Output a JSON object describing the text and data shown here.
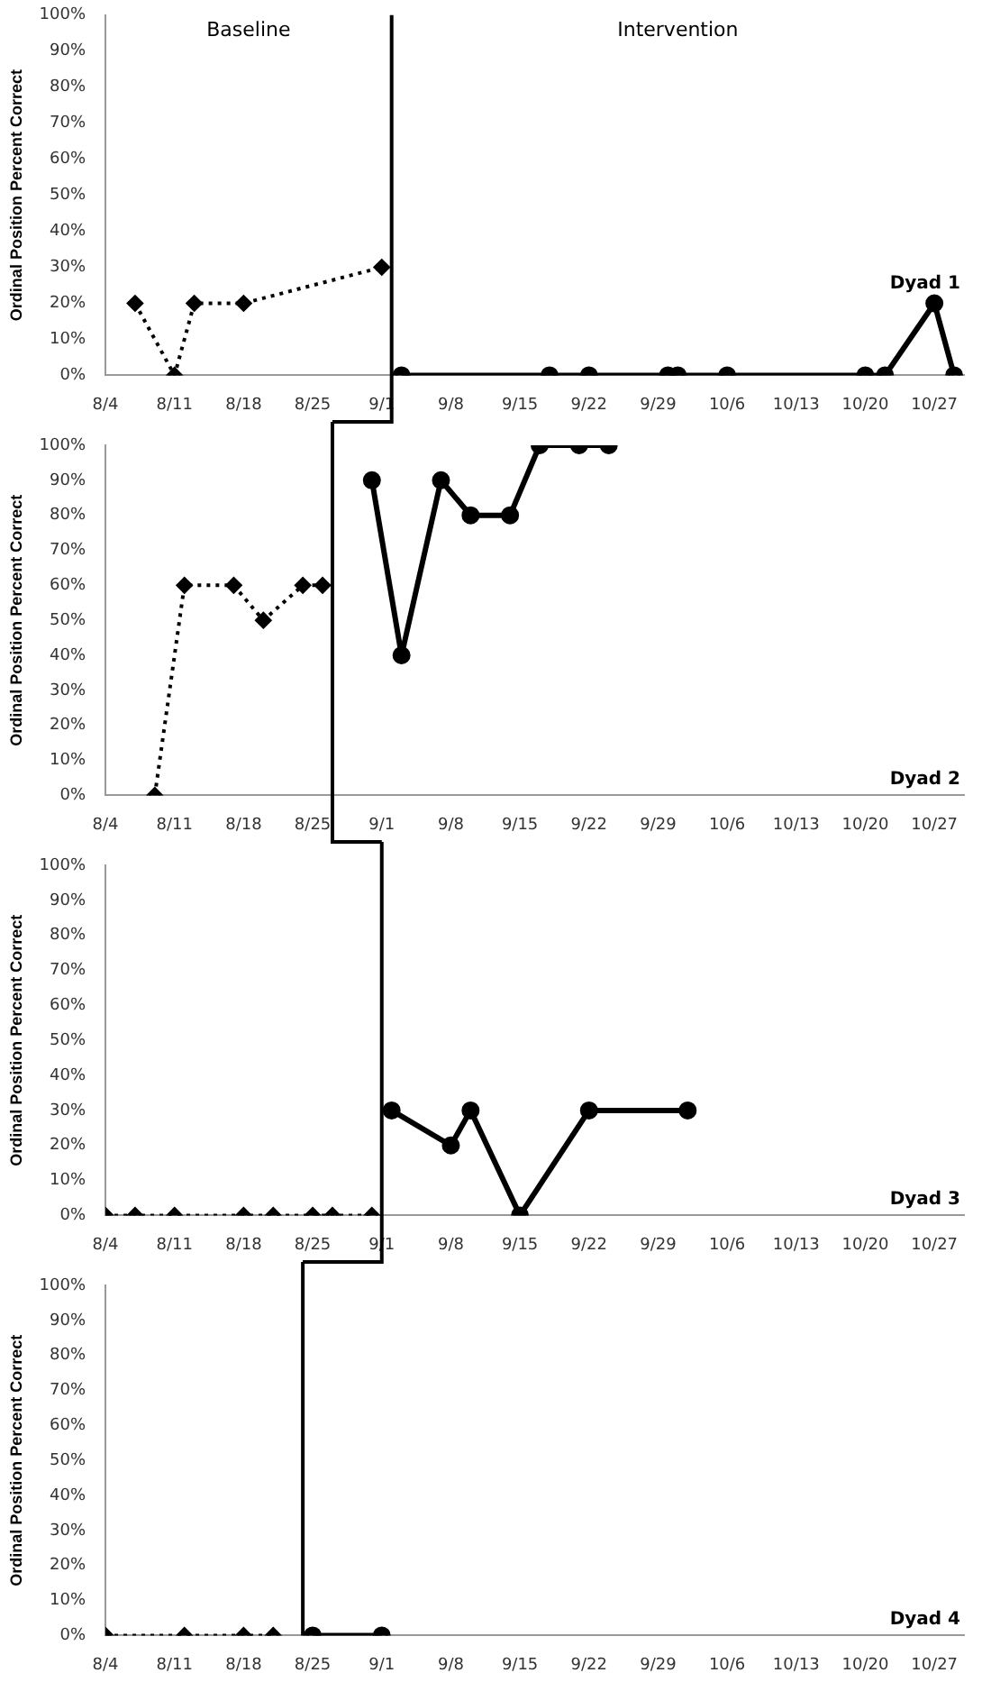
{
  "chart_data": [
    {
      "type": "line",
      "title": "Dyad 1",
      "ylabel": "Ordinal Position Percent Correct",
      "annotations": [
        "Baseline",
        "Intervention"
      ],
      "xlim": [
        "--08-04",
        "--10-30"
      ],
      "xticks": [
        {
          "value": "--08-04",
          "label": "8/4"
        },
        {
          "value": "--08-11",
          "label": "8/11"
        },
        {
          "value": "--08-18",
          "label": "8/18"
        },
        {
          "value": "--08-25",
          "label": "8/25"
        },
        {
          "value": "--09-01",
          "label": "9/1"
        },
        {
          "value": "--09-08",
          "label": "9/8"
        },
        {
          "value": "--09-15",
          "label": "9/15"
        },
        {
          "value": "--09-22",
          "label": "9/22"
        },
        {
          "value": "--09-29",
          "label": "9/29"
        },
        {
          "value": "--10-06",
          "label": "10/6"
        },
        {
          "value": "--10-13",
          "label": "10/13"
        },
        {
          "value": "--10-20",
          "label": "10/20"
        },
        {
          "value": "--10-27",
          "label": "10/27"
        }
      ],
      "ylim": [
        0,
        100
      ],
      "yticks": [
        {
          "value": 0,
          "label": "0%"
        },
        {
          "value": 10,
          "label": "10%"
        },
        {
          "value": 20,
          "label": "20%"
        },
        {
          "value": 30,
          "label": "30%"
        },
        {
          "value": 40,
          "label": "40%"
        },
        {
          "value": 50,
          "label": "50%"
        },
        {
          "value": 60,
          "label": "60%"
        },
        {
          "value": 70,
          "label": "70%"
        },
        {
          "value": 80,
          "label": "80%"
        },
        {
          "value": 90,
          "label": "90%"
        },
        {
          "value": 100,
          "label": "100%"
        }
      ],
      "ref_lines": [
        {
          "axis": "x",
          "value": "--09-02",
          "color": "#000000"
        }
      ],
      "series": [
        {
          "color": "#000000",
          "marker": "diamond",
          "line_style": "dotted",
          "x": [
            "--08-07",
            "--08-11",
            "--08-13",
            "--08-18",
            "--09-01"
          ],
          "values": [
            20,
            0,
            20,
            20,
            30
          ]
        },
        {
          "color": "#000000",
          "marker": "circle",
          "line_style": "solid",
          "x": [
            "--09-03",
            "--09-18",
            "--09-22",
            "--09-30",
            "--10-01",
            "--10-06",
            "--10-20",
            "--10-22",
            "--10-27",
            "--10-29"
          ],
          "values": [
            0,
            0,
            0,
            0,
            0,
            0,
            0,
            0,
            20,
            0
          ]
        }
      ]
    },
    {
      "type": "line",
      "title": "Dyad 2",
      "ylabel": "Ordinal Position Percent Correct",
      "xlim": [
        "--08-04",
        "--10-30"
      ],
      "xticks": [
        {
          "value": "--08-04",
          "label": "8/4"
        },
        {
          "value": "--08-11",
          "label": "8/11"
        },
        {
          "value": "--08-18",
          "label": "8/18"
        },
        {
          "value": "--08-25",
          "label": "8/25"
        },
        {
          "value": "--09-01",
          "label": "9/1"
        },
        {
          "value": "--09-08",
          "label": "9/8"
        },
        {
          "value": "--09-15",
          "label": "9/15"
        },
        {
          "value": "--09-22",
          "label": "9/22"
        },
        {
          "value": "--09-29",
          "label": "9/29"
        },
        {
          "value": "--10-06",
          "label": "10/6"
        },
        {
          "value": "--10-13",
          "label": "10/13"
        },
        {
          "value": "--10-20",
          "label": "10/20"
        },
        {
          "value": "--10-27",
          "label": "10/27"
        }
      ],
      "ylim": [
        0,
        100
      ],
      "yticks": [
        {
          "value": 0,
          "label": "0%"
        },
        {
          "value": 10,
          "label": "10%"
        },
        {
          "value": 20,
          "label": "20%"
        },
        {
          "value": 30,
          "label": "30%"
        },
        {
          "value": 40,
          "label": "40%"
        },
        {
          "value": 50,
          "label": "50%"
        },
        {
          "value": 60,
          "label": "60%"
        },
        {
          "value": 70,
          "label": "70%"
        },
        {
          "value": 80,
          "label": "80%"
        },
        {
          "value": 90,
          "label": "90%"
        },
        {
          "value": 100,
          "label": "100%"
        }
      ],
      "ref_lines": [
        {
          "axis": "x",
          "value": "--08-27",
          "color": "#000000"
        }
      ],
      "series": [
        {
          "color": "#000000",
          "marker": "diamond",
          "line_style": "dotted",
          "x": [
            "--08-09",
            "--08-12",
            "--08-17",
            "--08-20",
            "--08-24",
            "--08-26"
          ],
          "values": [
            0,
            60,
            60,
            50,
            60,
            60
          ]
        },
        {
          "color": "#000000",
          "marker": "circle",
          "line_style": "solid",
          "x": [
            "--08-31",
            "--09-03",
            "--09-07",
            "--09-10",
            "--09-14",
            "--09-17",
            "--09-21",
            "--09-24"
          ],
          "values": [
            90,
            40,
            90,
            80,
            80,
            100,
            100,
            100
          ]
        }
      ]
    },
    {
      "type": "line",
      "title": "Dyad 3",
      "ylabel": "Ordinal Position Percent Correct",
      "xlim": [
        "--08-04",
        "--10-30"
      ],
      "xticks": [
        {
          "value": "--08-04",
          "label": "8/4"
        },
        {
          "value": "--08-11",
          "label": "8/11"
        },
        {
          "value": "--08-18",
          "label": "8/18"
        },
        {
          "value": "--08-25",
          "label": "8/25"
        },
        {
          "value": "--09-01",
          "label": "9/1"
        },
        {
          "value": "--09-08",
          "label": "9/8"
        },
        {
          "value": "--09-15",
          "label": "9/15"
        },
        {
          "value": "--09-22",
          "label": "9/22"
        },
        {
          "value": "--09-29",
          "label": "9/29"
        },
        {
          "value": "--10-06",
          "label": "10/6"
        },
        {
          "value": "--10-13",
          "label": "10/13"
        },
        {
          "value": "--10-20",
          "label": "10/20"
        },
        {
          "value": "--10-27",
          "label": "10/27"
        }
      ],
      "ylim": [
        0,
        100
      ],
      "yticks": [
        {
          "value": 0,
          "label": "0%"
        },
        {
          "value": 10,
          "label": "10%"
        },
        {
          "value": 20,
          "label": "20%"
        },
        {
          "value": 30,
          "label": "30%"
        },
        {
          "value": 40,
          "label": "40%"
        },
        {
          "value": 50,
          "label": "50%"
        },
        {
          "value": 60,
          "label": "60%"
        },
        {
          "value": 70,
          "label": "70%"
        },
        {
          "value": 80,
          "label": "80%"
        },
        {
          "value": 90,
          "label": "90%"
        },
        {
          "value": 100,
          "label": "100%"
        }
      ],
      "ref_lines": [
        {
          "axis": "x",
          "value": "--09-01",
          "color": "#000000"
        }
      ],
      "series": [
        {
          "color": "#000000",
          "marker": "diamond",
          "line_style": "dotted",
          "x": [
            "--08-04",
            "--08-07",
            "--08-11",
            "--08-18",
            "--08-21",
            "--08-25",
            "--08-27",
            "--08-31"
          ],
          "values": [
            0,
            0,
            0,
            0,
            0,
            0,
            0,
            0
          ]
        },
        {
          "color": "#000000",
          "marker": "circle",
          "line_style": "solid",
          "x": [
            "--09-02",
            "--09-08",
            "--09-10",
            "--09-15",
            "--09-22",
            "--10-02"
          ],
          "values": [
            30,
            20,
            30,
            0,
            30,
            30
          ]
        }
      ]
    },
    {
      "type": "line",
      "title": "Dyad 4",
      "ylabel": "Ordinal Position Percent Correct",
      "xlim": [
        "--08-04",
        "--10-30"
      ],
      "xticks": [
        {
          "value": "--08-04",
          "label": "8/4"
        },
        {
          "value": "--08-11",
          "label": "8/11"
        },
        {
          "value": "--08-18",
          "label": "8/18"
        },
        {
          "value": "--08-25",
          "label": "8/25"
        },
        {
          "value": "--09-01",
          "label": "9/1"
        },
        {
          "value": "--09-08",
          "label": "9/8"
        },
        {
          "value": "--09-15",
          "label": "9/15"
        },
        {
          "value": "--09-22",
          "label": "9/22"
        },
        {
          "value": "--09-29",
          "label": "9/29"
        },
        {
          "value": "--10-06",
          "label": "10/6"
        },
        {
          "value": "--10-13",
          "label": "10/13"
        },
        {
          "value": "--10-20",
          "label": "10/20"
        },
        {
          "value": "--10-27",
          "label": "10/27"
        }
      ],
      "ylim": [
        0,
        100
      ],
      "yticks": [
        {
          "value": 0,
          "label": "0%"
        },
        {
          "value": 10,
          "label": "10%"
        },
        {
          "value": 20,
          "label": "20%"
        },
        {
          "value": 30,
          "label": "30%"
        },
        {
          "value": 40,
          "label": "40%"
        },
        {
          "value": 50,
          "label": "50%"
        },
        {
          "value": 60,
          "label": "60%"
        },
        {
          "value": 70,
          "label": "70%"
        },
        {
          "value": 80,
          "label": "80%"
        },
        {
          "value": 90,
          "label": "90%"
        },
        {
          "value": 100,
          "label": "100%"
        }
      ],
      "ref_lines": [
        {
          "axis": "x",
          "value": "--08-24",
          "color": "#000000"
        }
      ],
      "series": [
        {
          "color": "#000000",
          "marker": "diamond",
          "line_style": "dotted",
          "x": [
            "--08-04",
            "--08-12",
            "--08-18",
            "--08-21"
          ],
          "values": [
            0,
            0,
            0,
            0
          ]
        },
        {
          "color": "#000000",
          "marker": "circle",
          "line_style": "solid",
          "x": [
            "--08-25",
            "--09-01"
          ],
          "values": [
            0,
            0
          ]
        }
      ]
    }
  ]
}
